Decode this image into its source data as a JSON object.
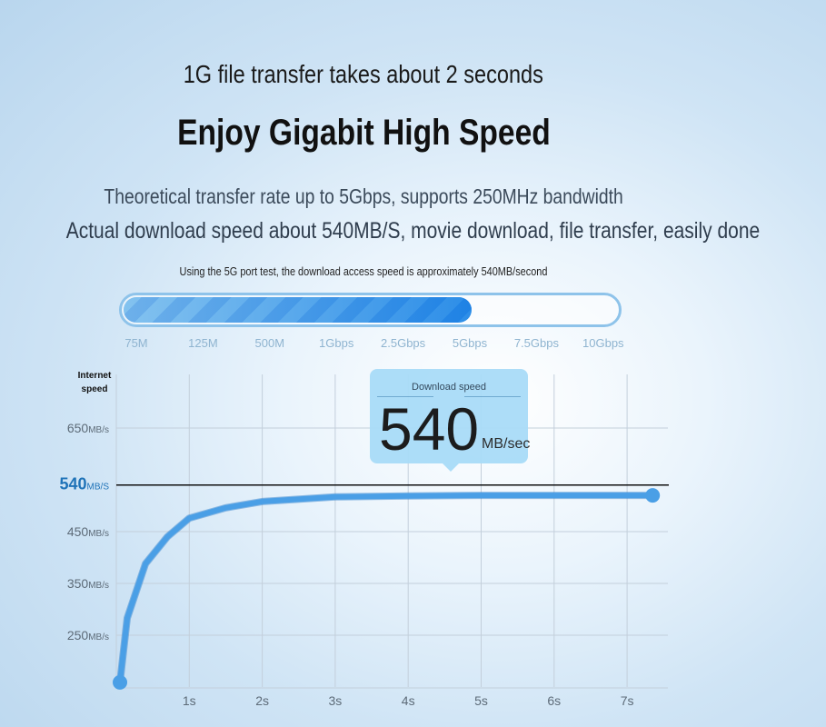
{
  "headline": {
    "line1": "1G file transfer takes about 2 seconds",
    "title": "Enjoy Gigabit High Speed",
    "desc1": "Theoretical transfer rate up to 5Gbps, supports 250MHz bandwidth",
    "desc2": "Actual download speed about 540MB/S, movie download, file transfer, easily done",
    "note": "Using the 5G port test, the download access speed is approximately 540MB/second"
  },
  "speed_bar": {
    "ticks": [
      "75M",
      "125M",
      "500M",
      "1Gbps",
      "2.5Gbps",
      "5Gbps",
      "7.5Gbps",
      "10Gbps"
    ],
    "fill_to": "5Gbps",
    "fill_fraction": 0.7,
    "colors": {
      "fill": "#3d96e3",
      "track": "#8ec3ea"
    }
  },
  "tooltip": {
    "label": "Download speed",
    "value": "540",
    "unit": "MB/sec"
  },
  "chart_data": {
    "type": "line",
    "ylabel_line1": "Internet",
    "ylabel_line2": "speed",
    "yticks": [
      {
        "value": 650,
        "num": "650",
        "unit": "MB/s"
      },
      {
        "value": 540,
        "num": "540",
        "unit": "MB/S",
        "highlight": true
      },
      {
        "value": 450,
        "num": "450",
        "unit": "MB/s"
      },
      {
        "value": 350,
        "num": "350",
        "unit": "MB/s"
      },
      {
        "value": 250,
        "num": "250",
        "unit": "MB/s"
      }
    ],
    "xticks": [
      "1s",
      "2s",
      "3s",
      "4s",
      "5s",
      "6s",
      "7s"
    ],
    "xlim": [
      0,
      7.6
    ],
    "ylim": [
      150,
      700
    ],
    "reference_line": 540,
    "grid": true,
    "series": [
      {
        "x": [
          0.05,
          0.15,
          0.4,
          0.7,
          1,
          1.5,
          2,
          3,
          4,
          5,
          6,
          7,
          7.35
        ],
        "y": [
          159,
          283,
          388,
          440,
          476,
          496,
          508,
          517,
          519,
          520,
          520,
          520,
          520
        ],
        "color": "#4a9fe6"
      }
    ]
  }
}
